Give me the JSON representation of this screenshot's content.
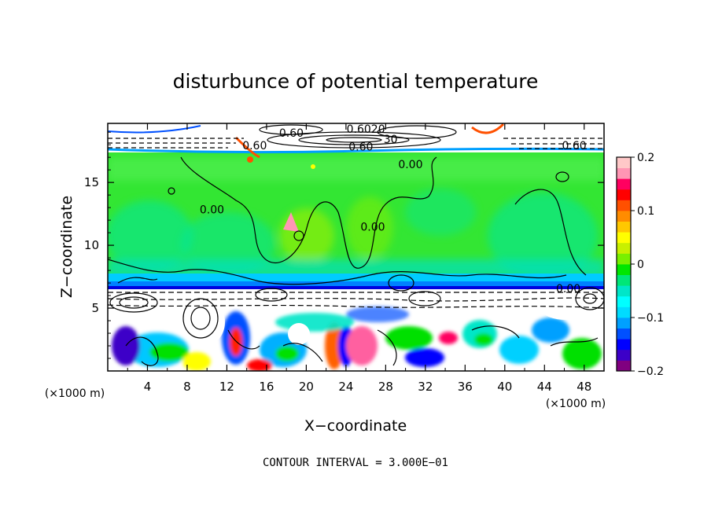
{
  "chart_data": {
    "type": "heatmap",
    "title": "disturbunce of potential temperature",
    "xlabel": "X−coordinate",
    "ylabel": "Z−coordinate",
    "x_unit": "(×1000 m)",
    "x_unit_right": "(×1000 m)",
    "xlim": [
      0,
      50
    ],
    "ylim": [
      0,
      19.7
    ],
    "x_ticks": [
      4,
      8,
      12,
      16,
      20,
      24,
      28,
      32,
      36,
      40,
      44,
      48
    ],
    "y_ticks": [
      5,
      10,
      15
    ],
    "colorbar": {
      "range": [
        -0.2,
        0.2
      ],
      "ticks": [
        {
          "value": 0.2,
          "label": "0.2"
        },
        {
          "value": 0.1,
          "label": "0.1"
        },
        {
          "value": 0.0,
          "label": "0"
        },
        {
          "value": -0.1,
          "label": "−0.1"
        },
        {
          "value": -0.2,
          "label": "−0.2"
        }
      ],
      "colors": [
        "#800080",
        "#3c00c8",
        "#0000ff",
        "#0050ff",
        "#00a0ff",
        "#00dcff",
        "#00ffff",
        "#00e6c8",
        "#00e678",
        "#00e600",
        "#78f000",
        "#c8f000",
        "#ffff00",
        "#ffc800",
        "#ff8c00",
        "#ff5000",
        "#ff0000",
        "#ff0060",
        "#ff96b4",
        "#ffc8c8"
      ]
    },
    "contour_labels": [
      {
        "x": 18.5,
        "y": 18.9,
        "text": "0.60"
      },
      {
        "x": 14.8,
        "y": 17.9,
        "text": "0.60"
      },
      {
        "x": 47.0,
        "y": 17.9,
        "text": "0.60"
      },
      {
        "x": 25.5,
        "y": 17.8,
        "text": "0.60"
      },
      {
        "x": 26.0,
        "y": 19.2,
        "text": "0.6020"
      },
      {
        "x": 28.5,
        "y": 18.4,
        "text": "30"
      },
      {
        "x": 30.5,
        "y": 16.4,
        "text": "0.00"
      },
      {
        "x": 10.5,
        "y": 12.8,
        "text": "0.00"
      },
      {
        "x": 26.7,
        "y": 11.4,
        "text": "0.00"
      },
      {
        "x": 46.4,
        "y": 6.5,
        "text": "0.00"
      }
    ],
    "footer": "CONTOUR INTERVAL = 3.000E−01"
  }
}
